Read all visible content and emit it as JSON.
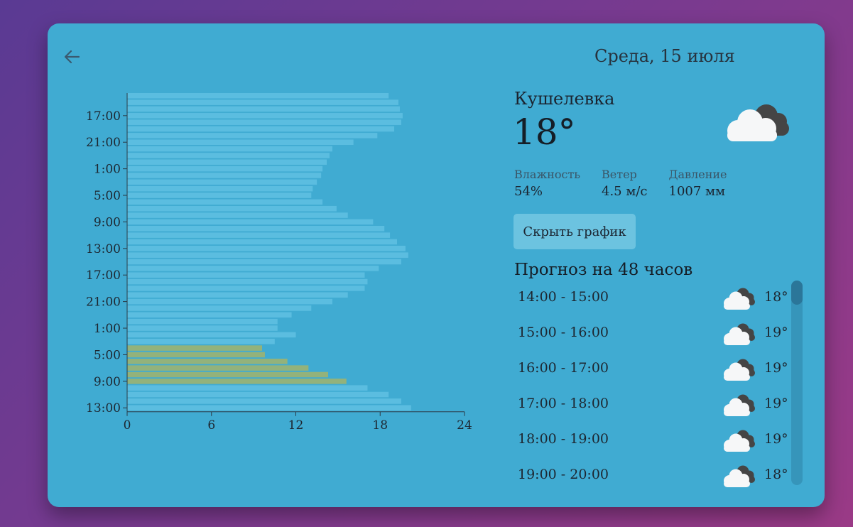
{
  "header": {
    "back_icon": "arrow-left-icon",
    "date": "Среда, 15 июля"
  },
  "current": {
    "city": "Кушелевка",
    "temperature": "18°",
    "icon": "cloudy-icon",
    "metrics": [
      {
        "label": "Влажность",
        "value": "54%"
      },
      {
        "label": "Ветер",
        "value": "4.5 м/с"
      },
      {
        "label": "Давление",
        "value": "1007 мм"
      }
    ]
  },
  "toggle_chart_button": "Скрыть график",
  "forecast": {
    "title": "Прогноз на 48 часов",
    "items": [
      {
        "time": "14:00 - 15:00",
        "temp": "18°",
        "icon": "cloudy-icon"
      },
      {
        "time": "15:00 - 16:00",
        "temp": "19°",
        "icon": "cloudy-icon"
      },
      {
        "time": "16:00 - 17:00",
        "temp": "19°",
        "icon": "cloudy-icon"
      },
      {
        "time": "17:00 - 18:00",
        "temp": "19°",
        "icon": "cloudy-icon"
      },
      {
        "time": "18:00 - 19:00",
        "temp": "19°",
        "icon": "cloudy-icon"
      },
      {
        "time": "19:00 - 20:00",
        "temp": "18°",
        "icon": "cloudy-icon"
      }
    ]
  },
  "colors": {
    "bar": "#5bbde0",
    "bar_highlight": "#93b27b",
    "card": "#40abd2"
  },
  "chart_data": {
    "type": "bar",
    "orientation": "horizontal",
    "xlim": [
      0,
      24
    ],
    "x_ticks": [
      "0",
      "6",
      "12",
      "18",
      "24"
    ],
    "y_tick_labels": [
      "17:00",
      "21:00",
      "1:00",
      "5:00",
      "9:00",
      "13:00",
      "17:00",
      "21:00",
      "1:00",
      "5:00",
      "9:00",
      "13:00"
    ],
    "y_tick_label_bar_indexes": [
      3,
      7,
      11,
      15,
      19,
      23,
      27,
      31,
      35,
      39,
      43,
      47
    ],
    "values": [
      18.6,
      19.3,
      19.4,
      19.6,
      19.5,
      19.0,
      17.8,
      16.1,
      14.6,
      14.4,
      14.2,
      13.9,
      13.8,
      13.5,
      13.2,
      13.1,
      13.9,
      14.9,
      15.7,
      17.5,
      18.3,
      18.7,
      19.2,
      19.8,
      20.0,
      19.5,
      17.9,
      16.9,
      17.1,
      16.9,
      15.7,
      14.6,
      13.1,
      11.7,
      10.7,
      10.7,
      12.0,
      10.5,
      9.6,
      9.8,
      11.4,
      12.9,
      14.3,
      15.6,
      17.1,
      18.6,
      19.5,
      20.2
    ],
    "highlighted_indexes": [
      38,
      39,
      40,
      41,
      42,
      43
    ]
  }
}
